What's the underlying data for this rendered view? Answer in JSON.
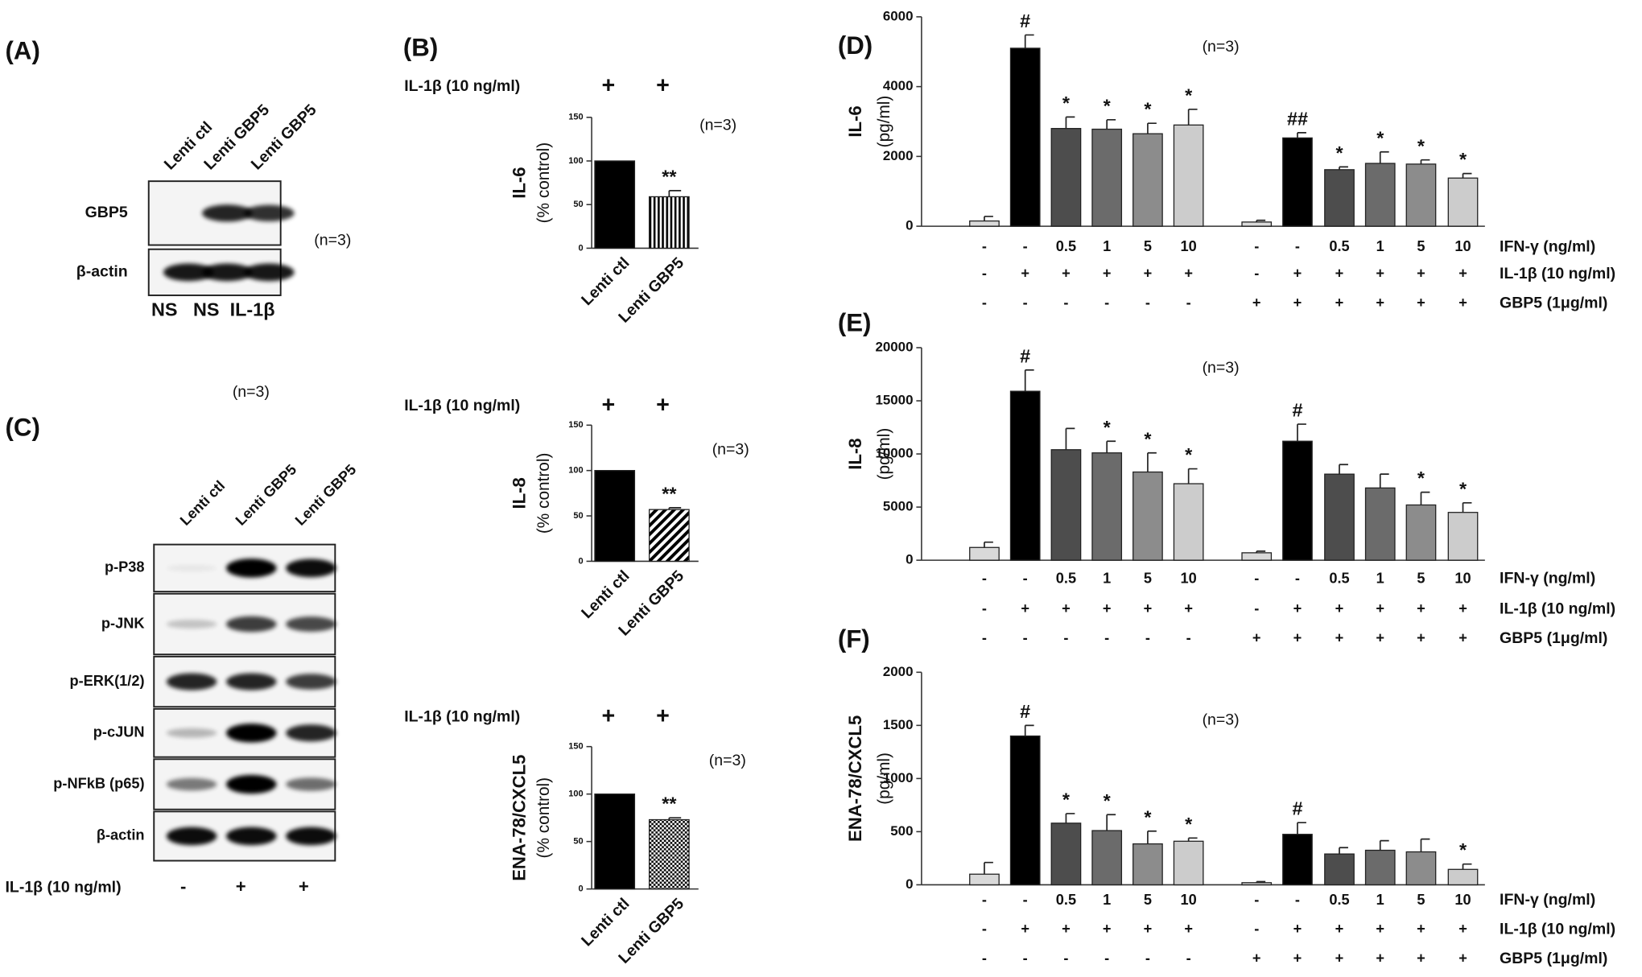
{
  "blots": [
    {
      "label": "(A)",
      "note": "(n=3)",
      "lanes": [
        "Lenti ctl",
        "Lenti GBP5",
        "Lenti GBP5"
      ],
      "rows": [
        "GBP5",
        "β-actin"
      ],
      "treatments": [
        "NS",
        "NS",
        "IL-1β"
      ]
    },
    {
      "label": "(C)",
      "note": "(n=3)",
      "lanes": [
        "Lenti ctl",
        "Lenti GBP5",
        "Lenti GBP5"
      ],
      "rows": [
        "p-P38",
        "p-JNK",
        "p-ERK(1/2)",
        "p-cJUN",
        "p-NFkB (p65)",
        "β-actin"
      ],
      "treatment_label": "IL-1β (10 ng/ml)",
      "treatments": [
        "-",
        "+",
        "+"
      ]
    }
  ],
  "chart_data": [
    {
      "type": "bar",
      "label": "(B)",
      "note": "(n=3)",
      "treatment_label": "IL-1β (10 ng/ml)",
      "treatments": [
        "+",
        "+"
      ],
      "ylabel": "IL-6",
      "ylabel2": "(% control)",
      "categories": [
        "Lenti ctl",
        "Lenti GBP5"
      ],
      "values": [
        100,
        59
      ],
      "errors": [
        null,
        7
      ],
      "significance": [
        null,
        "**"
      ],
      "colors": [
        "#000000",
        "#000000"
      ],
      "patterns": [
        null,
        "vertical-stripes"
      ],
      "ylim": [
        0,
        150
      ],
      "yticks": [
        0,
        50,
        100,
        150
      ]
    },
    {
      "type": "bar",
      "note": "(n=3)",
      "treatment_label": "IL-1β (10 ng/ml)",
      "treatments": [
        "+",
        "+"
      ],
      "ylabel": "IL-8",
      "ylabel2": "(% control)",
      "categories": [
        "Lenti ctl",
        "Lenti GBP5"
      ],
      "values": [
        100,
        57
      ],
      "errors": [
        null,
        2
      ],
      "significance": [
        null,
        "**"
      ],
      "colors": [
        "#000000",
        "#000000"
      ],
      "patterns": [
        null,
        "diagonal-stripes"
      ],
      "ylim": [
        0,
        150
      ],
      "yticks": [
        0,
        50,
        100,
        150
      ]
    },
    {
      "type": "bar",
      "note": "(n=3)",
      "treatment_label": "IL-1β (10 ng/ml)",
      "treatments": [
        "+",
        "+"
      ],
      "ylabel": "ENA-78/CXCL5",
      "ylabel2": "(% control)",
      "categories": [
        "Lenti ctl",
        "Lenti GBP5"
      ],
      "values": [
        100,
        73
      ],
      "errors": [
        null,
        2
      ],
      "significance": [
        null,
        "**"
      ],
      "colors": [
        "#000000",
        "#000000"
      ],
      "patterns": [
        null,
        "checker"
      ],
      "ylim": [
        0,
        150
      ],
      "yticks": [
        0,
        50,
        100,
        150
      ]
    },
    {
      "type": "bar",
      "label": "(D)",
      "note": "(n=3)",
      "ylabel": "IL-6",
      "ylabel2": "(pg/ml)",
      "values": [
        150,
        5100,
        2800,
        2780,
        2650,
        2900,
        120,
        2530,
        1620,
        1800,
        1780,
        1380
      ],
      "errors": [
        130,
        380,
        330,
        270,
        300,
        450,
        50,
        150,
        80,
        330,
        120,
        130
      ],
      "significance": [
        null,
        "#",
        "*",
        "*",
        "*",
        "*",
        null,
        "##",
        "*",
        "*",
        "*",
        "*"
      ],
      "colors": [
        "#d9d9d9",
        "#000000",
        "#4d4d4d",
        "#6b6b6b",
        "#8c8c8c",
        "#cccccc",
        "#d9d9d9",
        "#000000",
        "#4d4d4d",
        "#6b6b6b",
        "#8c8c8c",
        "#cccccc"
      ],
      "conditions": [
        {
          "label": "IFN-γ (ng/ml)",
          "values": [
            "-",
            "-",
            "0.5",
            "1",
            "5",
            "10",
            "-",
            "-",
            "0.5",
            "1",
            "5",
            "10"
          ]
        },
        {
          "label": "IL-1β (10 ng/ml)",
          "values": [
            "-",
            "+",
            "+",
            "+",
            "+",
            "+",
            "-",
            "+",
            "+",
            "+",
            "+",
            "+"
          ]
        },
        {
          "label": "GBP5 (1μg/ml)",
          "values": [
            "-",
            "-",
            "-",
            "-",
            "-",
            "-",
            "+",
            "+",
            "+",
            "+",
            "+",
            "+"
          ]
        }
      ],
      "ylim": [
        0,
        6000
      ],
      "yticks": [
        0,
        2000,
        4000,
        6000
      ]
    },
    {
      "type": "bar",
      "label": "(E)",
      "note": "(n=3)",
      "ylabel": "IL-8",
      "ylabel2": "(pg/ml)",
      "values": [
        1200,
        15900,
        10400,
        10100,
        8300,
        7200,
        700,
        11200,
        8100,
        6800,
        5200,
        4500
      ],
      "errors": [
        500,
        2000,
        2000,
        1100,
        1800,
        1400,
        150,
        1600,
        900,
        1300,
        1200,
        900
      ],
      "significance": [
        null,
        "#",
        null,
        "*",
        "*",
        "*",
        null,
        "#",
        null,
        null,
        "*",
        "*"
      ],
      "colors": [
        "#d9d9d9",
        "#000000",
        "#4d4d4d",
        "#6b6b6b",
        "#8c8c8c",
        "#cccccc",
        "#d9d9d9",
        "#000000",
        "#4d4d4d",
        "#6b6b6b",
        "#8c8c8c",
        "#cccccc"
      ],
      "conditions": [
        {
          "label": "IFN-γ (ng/ml)",
          "values": [
            "-",
            "-",
            "0.5",
            "1",
            "5",
            "10",
            "-",
            "-",
            "0.5",
            "1",
            "5",
            "10"
          ]
        },
        {
          "label": "IL-1β (10 ng/ml)",
          "values": [
            "-",
            "+",
            "+",
            "+",
            "+",
            "+",
            "-",
            "+",
            "+",
            "+",
            "+",
            "+"
          ]
        },
        {
          "label": "GBP5 (1μg/ml)",
          "values": [
            "-",
            "-",
            "-",
            "-",
            "-",
            "-",
            "+",
            "+",
            "+",
            "+",
            "+",
            "+"
          ]
        }
      ],
      "ylim": [
        0,
        20000
      ],
      "yticks": [
        0,
        5000,
        10000,
        15000,
        20000
      ]
    },
    {
      "type": "bar",
      "label": "(F)",
      "note": "(n=3)",
      "ylabel": "ENA-78/CXCL5",
      "ylabel2": "(pg/ml)",
      "values": [
        100,
        1400,
        580,
        510,
        385,
        410,
        20,
        475,
        290,
        325,
        310,
        145
      ],
      "errors": [
        110,
        100,
        90,
        150,
        120,
        30,
        10,
        110,
        60,
        90,
        120,
        50
      ],
      "significance": [
        null,
        "#",
        "*",
        "*",
        "*",
        "*",
        null,
        "#",
        null,
        null,
        null,
        "*"
      ],
      "colors": [
        "#d9d9d9",
        "#000000",
        "#4d4d4d",
        "#6b6b6b",
        "#8c8c8c",
        "#cccccc",
        "#d9d9d9",
        "#000000",
        "#4d4d4d",
        "#6b6b6b",
        "#8c8c8c",
        "#cccccc"
      ],
      "conditions": [
        {
          "label": "IFN-γ (ng/ml)",
          "values": [
            "-",
            "-",
            "0.5",
            "1",
            "5",
            "10",
            "-",
            "-",
            "0.5",
            "1",
            "5",
            "10"
          ]
        },
        {
          "label": "IL-1β (10 ng/ml)",
          "values": [
            "-",
            "+",
            "+",
            "+",
            "+",
            "+",
            "-",
            "+",
            "+",
            "+",
            "+",
            "+"
          ]
        },
        {
          "label": "GBP5 (1μg/ml)",
          "values": [
            "-",
            "-",
            "-",
            "-",
            "-",
            "-",
            "+",
            "+",
            "+",
            "+",
            "+",
            "+"
          ]
        }
      ],
      "ylim": [
        0,
        2000
      ],
      "yticks": [
        0,
        500,
        1000,
        1500,
        2000
      ]
    }
  ]
}
